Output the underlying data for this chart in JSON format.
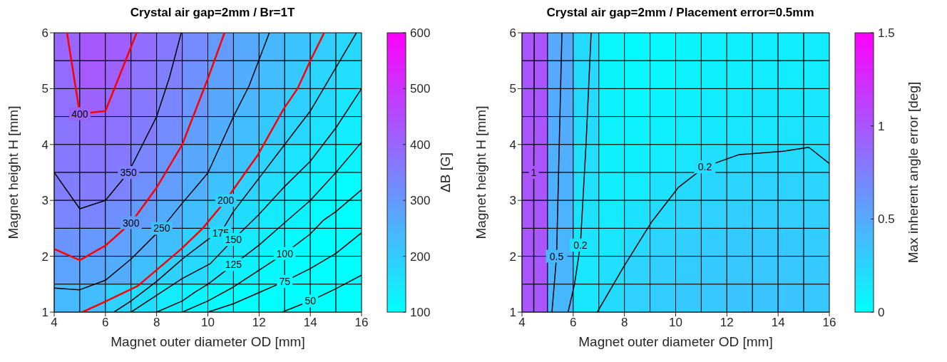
{
  "chart_data": [
    {
      "type": "heatmap",
      "title": "Crystal air gap=2mm / Br=1T",
      "xlabel": "Magnet outer diameter OD [mm]",
      "ylabel": "Magnet height H [mm]",
      "clabel": "ΔB [G]",
      "xlim": [
        4,
        16
      ],
      "ylim": [
        1,
        6
      ],
      "xticks": [
        4,
        6,
        8,
        10,
        12,
        14,
        16
      ],
      "yticks": [
        1,
        2,
        3,
        4,
        5,
        6
      ],
      "clim": [
        100,
        600
      ],
      "cticks": [
        100,
        200,
        300,
        400,
        500,
        600
      ],
      "cells": [
        [
          400,
          430,
          415,
          385,
          360,
          330,
          297,
          268,
          240,
          215,
          197,
          175
        ],
        [
          390,
          425,
          405,
          375,
          350,
          318,
          287,
          258,
          230,
          205,
          182,
          162
        ],
        [
          380,
          405,
          390,
          365,
          340,
          305,
          272,
          243,
          215,
          193,
          172,
          148
        ],
        [
          370,
          385,
          375,
          355,
          325,
          290,
          258,
          228,
          203,
          178,
          155,
          135
        ],
        [
          360,
          370,
          360,
          340,
          305,
          275,
          247,
          215,
          182,
          155,
          138,
          122
        ],
        [
          352,
          358,
          345,
          318,
          290,
          257,
          222,
          190,
          162,
          140,
          122,
          108
        ],
        [
          340,
          340,
          320,
          295,
          260,
          228,
          195,
          165,
          142,
          125,
          108,
          100
        ],
        [
          310,
          300,
          285,
          255,
          225,
          190,
          165,
          142,
          125,
          108,
          100,
          100
        ],
        [
          280,
          275,
          260,
          225,
          190,
          175,
          143,
          128,
          110,
          100,
          100,
          100
        ],
        [
          235,
          230,
          190,
          165,
          140,
          123,
          108,
          100,
          100,
          100,
          100,
          100
        ]
      ],
      "series": [
        {
          "type": "line",
          "name": "400",
          "color": "#ff0000",
          "x": [
            4.5,
            5,
            6,
            7.22
          ],
          "values": [
            6,
            4.55,
            4.6,
            6
          ]
        },
        {
          "type": "line",
          "name": "350",
          "color": "#000000",
          "x": [
            4,
            5,
            6,
            6.9,
            8,
            8.5,
            8.96
          ],
          "values": [
            3.5,
            2.85,
            3,
            3.5,
            4.5,
            5.2,
            6
          ]
        },
        {
          "type": "line",
          "name": "300",
          "color": "#ff0000",
          "x": [
            4,
            5,
            6,
            7,
            8,
            9,
            10,
            10.65
          ],
          "values": [
            2.13,
            1.93,
            2.19,
            2.6,
            3.23,
            4,
            5.18,
            6
          ]
        },
        {
          "type": "line",
          "name": "250",
          "color": "#000000",
          "x": [
            4,
            5,
            6,
            7,
            8.2,
            9,
            10,
            11,
            11.6,
            12.4
          ],
          "values": [
            1.43,
            1.4,
            1.57,
            1.95,
            2.5,
            2.95,
            3.49,
            4.5,
            5.04,
            6
          ]
        },
        {
          "type": "line",
          "name": "200",
          "color": "#ff0000",
          "x": [
            5.1,
            6,
            7.27,
            8.96,
            9.8,
            10.7,
            11.45,
            11.96,
            12.95,
            13.5,
            14,
            14.54
          ],
          "values": [
            1,
            1.19,
            1.47,
            2.13,
            2.5,
            3,
            3.49,
            3.82,
            4.63,
            5,
            5.5,
            6
          ]
        },
        {
          "type": "line",
          "name": "175",
          "color": "#000000",
          "x": [
            6.33,
            7,
            8,
            9,
            10,
            10.5,
            11,
            12,
            13,
            14,
            14.9,
            15.8
          ],
          "values": [
            1,
            1.2,
            1.55,
            1.95,
            2.3,
            2.42,
            2.8,
            3.4,
            4,
            4.6,
            5.3,
            6
          ]
        },
        {
          "type": "line",
          "name": "150",
          "color": "#000000",
          "x": [
            7,
            8,
            9,
            10.1,
            11,
            12,
            13,
            14,
            15,
            16
          ],
          "values": [
            1,
            1.3,
            1.6,
            1.87,
            2.3,
            2.75,
            3.25,
            3.7,
            4.3,
            5
          ]
        },
        {
          "type": "line",
          "name": "125",
          "color": "#000000",
          "x": [
            8,
            9,
            9.5,
            10,
            11,
            12,
            13,
            14,
            15,
            16
          ],
          "values": [
            1,
            1.2,
            1.36,
            1.5,
            1.85,
            2.2,
            2.6,
            3,
            3.5,
            4.04
          ]
        },
        {
          "type": "line",
          "name": "100",
          "color": "#000000",
          "x": [
            9,
            10,
            11,
            12,
            13,
            14,
            14.5,
            15,
            16
          ],
          "values": [
            1,
            1.2,
            1.45,
            1.75,
            2.05,
            2.4,
            2.64,
            2.8,
            3.19
          ]
        },
        {
          "type": "line",
          "name": "75",
          "color": "#000000",
          "x": [
            10,
            11,
            12,
            13,
            14,
            15,
            16
          ],
          "values": [
            1,
            1.15,
            1.35,
            1.55,
            1.78,
            2.05,
            2.42
          ]
        },
        {
          "type": "line",
          "name": "50",
          "color": "#000000",
          "x": [
            12.9,
            14,
            15,
            16
          ],
          "values": [
            1,
            1.2,
            1.42,
            1.66
          ]
        }
      ]
    },
    {
      "type": "heatmap",
      "title": "Crystal air gap=2mm / Placement error=0.5mm",
      "xlabel": "Magnet outer diameter OD [mm]",
      "ylabel": "Magnet height H [mm]",
      "clabel": "Max inherent angle error [deg]",
      "xlim": [
        4,
        16
      ],
      "ylim": [
        1,
        6
      ],
      "xticks": [
        4,
        6,
        8,
        10,
        12,
        14,
        16
      ],
      "yticks": [
        1,
        2,
        3,
        4,
        5,
        6
      ],
      "clim": [
        0,
        1.5
      ],
      "cticks": [
        0,
        0.5,
        1,
        1.5
      ],
      "cells": [
        [
          1.0,
          0.5,
          0.22,
          0.05,
          0.03,
          0.04,
          0.06,
          0.08,
          0.09,
          0.1,
          0.1,
          0.11
        ],
        [
          1.0,
          0.5,
          0.22,
          0.06,
          0.04,
          0.05,
          0.07,
          0.09,
          0.1,
          0.11,
          0.11,
          0.12
        ],
        [
          1.0,
          0.49,
          0.21,
          0.07,
          0.05,
          0.07,
          0.09,
          0.11,
          0.12,
          0.13,
          0.13,
          0.14
        ],
        [
          1.0,
          0.48,
          0.2,
          0.08,
          0.07,
          0.09,
          0.11,
          0.13,
          0.14,
          0.15,
          0.16,
          0.17
        ],
        [
          1.0,
          0.47,
          0.19,
          0.09,
          0.09,
          0.12,
          0.15,
          0.19,
          0.21,
          0.22,
          0.22,
          0.2
        ],
        [
          1.0,
          0.46,
          0.18,
          0.1,
          0.12,
          0.17,
          0.21,
          0.24,
          0.25,
          0.26,
          0.26,
          0.25
        ],
        [
          1.0,
          0.45,
          0.17,
          0.12,
          0.17,
          0.22,
          0.25,
          0.27,
          0.28,
          0.29,
          0.29,
          0.28
        ],
        [
          1.0,
          0.44,
          0.16,
          0.15,
          0.22,
          0.26,
          0.28,
          0.3,
          0.31,
          0.31,
          0.31,
          0.3
        ],
        [
          1.0,
          0.43,
          0.15,
          0.19,
          0.25,
          0.28,
          0.3,
          0.32,
          0.33,
          0.33,
          0.33,
          0.32
        ],
        [
          1.0,
          0.42,
          0.14,
          0.22,
          0.27,
          0.3,
          0.32,
          0.33,
          0.34,
          0.34,
          0.34,
          0.33
        ]
      ],
      "series": [
        {
          "type": "line",
          "name": "1",
          "color": "#000000",
          "x": [
            4.46,
            4.46,
            4.48
          ],
          "values": [
            1,
            3.5,
            6
          ]
        },
        {
          "type": "line",
          "name": "0.5",
          "color": "#000000",
          "x": [
            5.17,
            5.35,
            5.56
          ],
          "values": [
            1,
            2,
            6
          ]
        },
        {
          "type": "line",
          "name": "0.2",
          "color": "#000000",
          "x": [
            5.8,
            6.05,
            6.28,
            6.5,
            6.7
          ],
          "values": [
            1,
            1.5,
            2.2,
            4,
            6
          ]
        },
        {
          "type": "line",
          "name": "0.2",
          "color": "#000000",
          "x": [
            6.94,
            7.94,
            9.04,
            10.1,
            11.14,
            12.48,
            14.2,
            15.2,
            16
          ],
          "values": [
            1,
            1.79,
            2.6,
            3.23,
            3.6,
            3.82,
            3.88,
            3.95,
            3.66
          ]
        }
      ]
    }
  ]
}
